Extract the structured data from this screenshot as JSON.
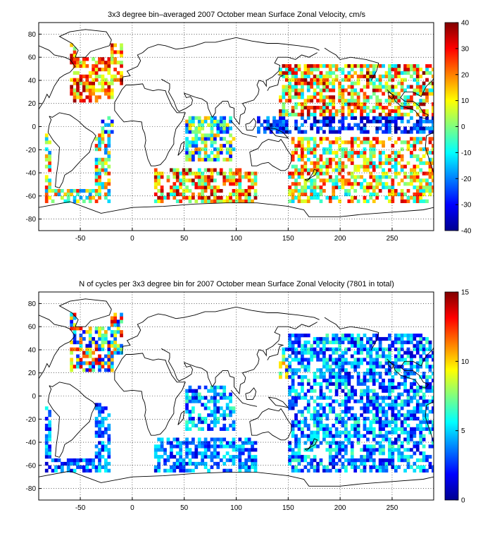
{
  "chart_data": [
    {
      "type": "heatmap",
      "title": "3x3 degree bin–averaged 2007 October mean Surface Zonal Velocity, cm/s",
      "xlabel": "",
      "ylabel": "",
      "xlim": [
        -90,
        290
      ],
      "ylim": [
        -90,
        90
      ],
      "x_ticks": [
        "-50",
        "0",
        "50",
        "100",
        "150",
        "200",
        "250"
      ],
      "y_ticks": [
        "80",
        "60",
        "40",
        "20",
        "0",
        "-20",
        "-40",
        "-60",
        "-80"
      ],
      "bin_size_deg": 3,
      "colorbar": {
        "min": -40,
        "max": 40,
        "ticks": [
          "40",
          "30",
          "20",
          "10",
          "0",
          "-10",
          "-20",
          "-30",
          "-40"
        ]
      },
      "grid": true,
      "value_description": "zonal velocity, cm/s, per 3x3 degree bin",
      "regions": [
        {
          "x": [
            -60,
            -10
          ],
          "y": [
            20,
            72
          ],
          "value_range": [
            0,
            38
          ]
        },
        {
          "x": [
            -85,
            -20
          ],
          "y": [
            -75,
            -5
          ],
          "value_range": [
            -20,
            30
          ]
        },
        {
          "x": [
            -30,
            10
          ],
          "y": [
            -5,
            10
          ],
          "value_range": [
            -35,
            10
          ]
        },
        {
          "x": [
            20,
            120
          ],
          "y": [
            -70,
            -35
          ],
          "value_range": [
            -10,
            40
          ]
        },
        {
          "x": [
            50,
            100
          ],
          "y": [
            -30,
            15
          ],
          "value_range": [
            -30,
            20
          ]
        },
        {
          "x": [
            120,
            290
          ],
          "y": [
            -5,
            10
          ],
          "value_range": [
            -40,
            -15
          ]
        },
        {
          "x": [
            130,
            290
          ],
          "y": [
            10,
            55
          ],
          "value_range": [
            -15,
            40
          ]
        },
        {
          "x": [
            150,
            290
          ],
          "y": [
            -70,
            -10
          ],
          "value_range": [
            -15,
            35
          ]
        }
      ]
    },
    {
      "type": "heatmap",
      "title": "N of cycles per 3x3 degree bin for 2007 October mean Surface Zonal Velocity (7801 in total)",
      "xlabel": "",
      "ylabel": "",
      "xlim": [
        -90,
        290
      ],
      "ylim": [
        -90,
        90
      ],
      "x_ticks": [
        "-50",
        "0",
        "50",
        "100",
        "150",
        "200",
        "250"
      ],
      "y_ticks": [
        "80",
        "60",
        "40",
        "20",
        "0",
        "-20",
        "-40",
        "-60",
        "-80"
      ],
      "bin_size_deg": 3,
      "total_cycles": 7801,
      "colorbar": {
        "min": 0,
        "max": 15,
        "ticks": [
          "15",
          "10",
          "5",
          "0"
        ]
      },
      "grid": true,
      "value_description": "number of cycles per 3x3 degree bin",
      "regions": [
        {
          "x": [
            -60,
            -10
          ],
          "y": [
            20,
            72
          ],
          "value_range": [
            1,
            14
          ]
        },
        {
          "x": [
            -85,
            -20
          ],
          "y": [
            -75,
            -5
          ],
          "value_range": [
            1,
            6
          ]
        },
        {
          "x": [
            20,
            120
          ],
          "y": [
            -70,
            -35
          ],
          "value_range": [
            1,
            6
          ]
        },
        {
          "x": [
            50,
            100
          ],
          "y": [
            -30,
            15
          ],
          "value_range": [
            1,
            7
          ]
        },
        {
          "x": [
            120,
            150
          ],
          "y": [
            15,
            45
          ],
          "value_range": [
            1,
            12
          ]
        },
        {
          "x": [
            150,
            290
          ],
          "y": [
            -70,
            55
          ],
          "value_range": [
            1,
            7
          ]
        }
      ]
    }
  ]
}
